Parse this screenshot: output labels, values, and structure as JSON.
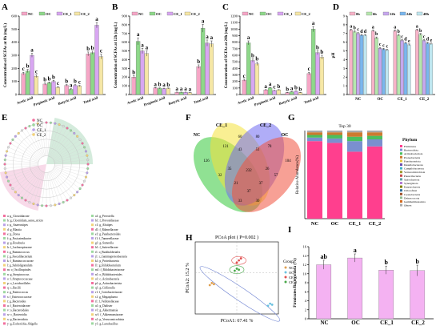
{
  "panels": {
    "A": {
      "letter": "A",
      "ylabel": "Concentration of SCFAs at 0h (mg/L)"
    },
    "B": {
      "letter": "B",
      "ylabel": "Concentration of SCFAs at 12h (mg/L)"
    },
    "C": {
      "letter": "C",
      "ylabel": "Concentration of SCFAs at 24h (mg/L)"
    },
    "D": {
      "letter": "D",
      "ylabel": "pH"
    },
    "E": {
      "letter": "E"
    },
    "F": {
      "letter": "F"
    },
    "G": {
      "letter": "G",
      "title": "Top 30",
      "ylabel": "Relative Abundance(%)",
      "legend_title": "Phylum"
    },
    "H": {
      "letter": "H",
      "title": "PCoA plot ( P=0.002 )",
      "xlabel": "PCoA1: 67.41 %",
      "ylabel": "PCoA2: 15.2 %",
      "legend_title": "Group"
    },
    "I": {
      "letter": "I",
      "ylabel": "Firmicutes/Bacteroidota (%)"
    }
  },
  "legend_groups": [
    "NC",
    "OC",
    "CE_1",
    "CE_2"
  ],
  "legend_times": [
    "0h",
    "6h",
    "12h",
    "24h",
    "48h"
  ],
  "colors": {
    "NC": "#f6a6c6",
    "OC": "#8ed88a",
    "CE_1": "#d8a6f2",
    "CE_2": "#f6e7a6"
  },
  "venn": {
    "labels": [
      "NC",
      "CE_1",
      "CE_2",
      "OC"
    ],
    "numbers": [
      "126",
      "60",
      "80",
      "104",
      "131",
      "43",
      "51",
      "78",
      "232",
      "35",
      "26",
      "21",
      "37",
      "37",
      "32",
      "57",
      "33",
      "30"
    ]
  },
  "lefse_legend": [
    "NC",
    "OC",
    "CE_1",
    "CE_2"
  ],
  "lefse_left": [
    "a: g_Clostridiaceae",
    "b: g_Clostridium_sensu_stricto",
    "c: g_Anaerostipes",
    "d: g_Blautia",
    "e: g_Dorea",
    "f: g_Fusicatenibacter",
    "g: g_Roseburia",
    "h: f_Lachnospiraceae",
    "i: g_Ruminococcus",
    "j: g_Faecalibacterium",
    "k: f_Ruminococcaceae",
    "l: g_Subdoligranulum",
    "m: o_Oscillospirales",
    "n: g_Streptococcus",
    "o: f_Streptococcaceae",
    "p: o_Lactobacillales",
    "q: c_Bacilli",
    "r: g_Enterococcus",
    "s: f_Enterococcaceae",
    "t: g_Bacteroides",
    "u: f_Bacteroidaceae",
    "v: o_Bacteroidales",
    "w: c_Bacteroidia",
    "x: p_Bacteroidota",
    "y: g_Escherichia_Shigella"
  ],
  "lefse_right": [
    "a1: g_Prevotella",
    "b1: f_Prevotellaceae",
    "c1: g_Alistipes",
    "d1: f_Rikenellaceae",
    "e1: g_Parabacteroides",
    "f1: f_Tannerellaceae",
    "g1: g_Sutterella",
    "h1: f_Sutterellaceae",
    "i1: o_Burkholderiales",
    "j1: c_Gammaproteobacteria",
    "k1: p_Proteobacteria",
    "l1: g_Bifidobacterium",
    "m1: f_Bifidobacteriaceae",
    "n1: o_Bifidobacteriales",
    "o1: c_Actinobacteria",
    "p1: p_Actinobacteriota",
    "q1: g_Collinsella",
    "r1: f_Coriobacteriaceae",
    "s1: g_Megasphaera",
    "t1: f_Veillonellaceae",
    "u1: g_Dialister",
    "v1: g_Akkermansia",
    "w1: f_Akkermansiaceae",
    "x1: p_Verrucomicrobiota",
    "y1: g_Lactobacillus"
  ],
  "phylum_legend": [
    "Firmicutes",
    "Bacteroidota",
    "Actinobacteriota",
    "Proteobacteria",
    "Fusobacteriota",
    "Desulfobacterota",
    "Campilobacterota",
    "Verrucomicrobiota",
    "Patescibacteria",
    "Spirochaetota",
    "Synergistota",
    "Euryarchaeota",
    "Chloroflexi",
    "Cyanobacteria",
    "Deinococcota",
    "Gemmatimonadota",
    "Others"
  ],
  "phylum_colors": [
    "#ff3f8e",
    "#7a8fcf",
    "#4bbf5e",
    "#cd7a2f",
    "#e3c63c",
    "#6d4fb0",
    "#3fb3c8",
    "#9b9b2f",
    "#c84a4a",
    "#5f9ea0",
    "#b57bd6",
    "#808000",
    "#2f6f9f",
    "#a0522d",
    "#8fbc8f",
    "#d2691e",
    "#a9a9a9"
  ],
  "pcoa_groups": [
    "NC",
    "OC",
    "CE_1",
    "CE_2"
  ],
  "pcoa_colors": [
    "#e0a050",
    "#6cc2e0",
    "#e05050",
    "#4aa84a"
  ],
  "chart_data": [
    {
      "type": "bar",
      "panel": "A",
      "categories": [
        "Acetic acid",
        "Propionic acid",
        "Butyric acid",
        "Total acid"
      ],
      "ylabel": "Concentration of SCFAs at 0h (mg/L)",
      "ylim": [
        0,
        600
      ],
      "yticks": [
        "0",
        "100",
        "200",
        "300",
        "400",
        "500",
        "600"
      ],
      "series": [
        {
          "name": "NC",
          "values": [
            160,
            80,
            70,
            310
          ],
          "err": [
            10,
            8,
            6,
            15
          ],
          "letters": [
            "c",
            "b",
            "b",
            "b"
          ]
        },
        {
          "name": "OC",
          "values": [
            180,
            90,
            40,
            320
          ],
          "err": [
            12,
            6,
            5,
            12
          ],
          "letters": [
            "b",
            "b",
            "a",
            "b"
          ]
        },
        {
          "name": "CE_1",
          "values": [
            300,
            100,
            70,
            530
          ],
          "err": [
            15,
            8,
            6,
            20
          ],
          "letters": [
            "a",
            "b",
            "b",
            "a"
          ]
        },
        {
          "name": "CE_2",
          "values": [
            140,
            55,
            65,
            290
          ],
          "err": [
            10,
            6,
            5,
            18
          ],
          "letters": [
            "c",
            "c",
            "c",
            "c"
          ]
        }
      ]
    },
    {
      "type": "bar",
      "panel": "B",
      "categories": [
        "Acetic acid",
        "Propionic acid",
        "Butyric acid",
        "Total acid"
      ],
      "ylabel": "Concentration of SCFAs at 12h (mg/L)",
      "ylim": [
        0,
        900
      ],
      "yticks": [
        "0",
        "100",
        "200",
        "300",
        "400",
        "500",
        "600",
        "700",
        "800",
        "900"
      ],
      "series": [
        {
          "name": "NC",
          "values": [
            200,
            75,
            25,
            320
          ],
          "err": [
            15,
            5,
            3,
            20
          ],
          "letters": [
            "b",
            "a",
            "a",
            "b"
          ]
        },
        {
          "name": "OC",
          "values": [
            610,
            70,
            25,
            760
          ],
          "err": [
            40,
            6,
            3,
            45
          ],
          "letters": [
            "a",
            "b",
            "a",
            "a"
          ]
        },
        {
          "name": "CE_1",
          "values": [
            500,
            68,
            25,
            590
          ],
          "err": [
            30,
            5,
            3,
            35
          ],
          "letters": [
            "a",
            "a",
            "a",
            "a"
          ]
        },
        {
          "name": "CE_2",
          "values": [
            470,
            70,
            20,
            580
          ],
          "err": [
            30,
            5,
            3,
            35
          ],
          "letters": [
            "a",
            "b",
            "a",
            "a"
          ]
        }
      ]
    },
    {
      "type": "bar",
      "panel": "C",
      "categories": [
        "Acetic acid",
        "Propionic acid",
        "Butyric acid",
        "Total acid"
      ],
      "ylabel": "Concentration of SCFAs at 24h (mg/L)",
      "ylim": [
        0,
        1200
      ],
      "yticks": [
        "0",
        "100",
        "200",
        "300",
        "400",
        "500",
        "600",
        "700",
        "800",
        "900",
        "1000",
        "1100",
        "1200"
      ],
      "series": [
        {
          "name": "NC",
          "values": [
            220,
            70,
            30,
            320
          ],
          "err": [
            15,
            5,
            3,
            20
          ],
          "letters": [
            "c",
            "a",
            "b",
            "c"
          ]
        },
        {
          "name": "OC",
          "values": [
            790,
            100,
            40,
            1000
          ],
          "err": [
            30,
            8,
            4,
            40
          ],
          "letters": [
            "a",
            "a",
            "a",
            "a"
          ]
        },
        {
          "name": "CE_1",
          "values": [
            520,
            60,
            50,
            640
          ],
          "err": [
            25,
            5,
            4,
            30
          ],
          "letters": [
            "b",
            "c",
            "b",
            "b"
          ]
        },
        {
          "name": "CE_2",
          "values": [
            470,
            70,
            30,
            570
          ],
          "err": [
            25,
            5,
            3,
            30
          ],
          "letters": [
            "b",
            "b",
            "b",
            "b"
          ]
        }
      ]
    },
    {
      "type": "bar",
      "panel": "D",
      "categories": [
        "NC",
        "OC",
        "CE_1",
        "CE_2"
      ],
      "ylabel": "pH",
      "ylim": [
        0,
        9
      ],
      "yticks": [
        "0",
        "1",
        "2",
        "3",
        "4",
        "5",
        "6",
        "7",
        "8",
        "9"
      ],
      "series": [
        {
          "name": "0h",
          "values": [
            7.4,
            7.3,
            7.3,
            7.4
          ],
          "err": [
            0.1,
            0.1,
            0.1,
            0.1
          ],
          "letters": [
            "a",
            "a",
            "a",
            "a"
          ]
        },
        {
          "name": "6h",
          "values": [
            7.2,
            6.5,
            6.8,
            6.9
          ],
          "err": [
            0.1,
            0.1,
            0.1,
            0.1
          ],
          "letters": [
            "b",
            "b",
            "b",
            "b"
          ]
        },
        {
          "name": "12h",
          "values": [
            7.0,
            5.3,
            6.2,
            6.2
          ],
          "err": [
            0.1,
            0.1,
            0.1,
            0.1
          ],
          "letters": [
            "c",
            "c",
            "c",
            "c"
          ]
        },
        {
          "name": "24h",
          "values": [
            6.8,
            5.2,
            5.9,
            5.9
          ],
          "err": [
            0.1,
            0.1,
            0.1,
            0.1
          ],
          "letters": [
            "d",
            "c",
            "d",
            "d"
          ]
        },
        {
          "name": "48h",
          "values": [
            6.8,
            5.1,
            5.7,
            5.8
          ],
          "err": [
            0.1,
            0.1,
            0.1,
            0.1
          ],
          "letters": [
            "d",
            "c",
            "e",
            "e"
          ]
        }
      ]
    },
    {
      "type": "bar",
      "panel": "G",
      "stacked": true,
      "categories": [
        "NC",
        "OC",
        "CE_1",
        "CE_2"
      ],
      "ylabel": "Relative Abundance(%)",
      "title": "Top 30",
      "ylim": [
        0,
        1
      ],
      "series": [
        {
          "name": "Firmicutes",
          "values": [
            0.88,
            0.86,
            0.76,
            0.82
          ]
        },
        {
          "name": "Bacteroidota",
          "values": [
            0.04,
            0.05,
            0.12,
            0.08
          ]
        },
        {
          "name": "Actinobacteriota",
          "values": [
            0.03,
            0.04,
            0.05,
            0.04
          ]
        },
        {
          "name": "Proteobacteria",
          "values": [
            0.03,
            0.03,
            0.05,
            0.04
          ]
        },
        {
          "name": "Others",
          "values": [
            0.02,
            0.02,
            0.02,
            0.02
          ]
        }
      ]
    },
    {
      "type": "scatter",
      "panel": "H",
      "title": "PCoA plot ( P=0.002 )",
      "xlabel": "PCoA1: 67.41 %",
      "ylabel": "PCoA2: 15.2 %",
      "xlim": [
        -0.2,
        0.2
      ],
      "ylim": [
        -0.2,
        0.15
      ],
      "series": [
        {
          "name": "NC",
          "x": [
            -0.12,
            -0.13,
            -0.11
          ],
          "y": [
            -0.05,
            -0.06,
            -0.055
          ]
        },
        {
          "name": "OC",
          "x": [
            0.16,
            0.15,
            0.17
          ],
          "y": [
            -0.15,
            -0.16,
            -0.155
          ]
        },
        {
          "name": "CE_1",
          "x": [
            0.01,
            0.02,
            0.0
          ],
          "y": [
            0.06,
            0.07,
            0.05
          ]
        },
        {
          "name": "CE_2",
          "x": [
            0.0,
            0.01,
            -0.01
          ],
          "y": [
            0.02,
            0.015,
            0.01
          ]
        }
      ]
    },
    {
      "type": "bar",
      "panel": "I",
      "categories": [
        "NC",
        "OC",
        "CE_1",
        "CE_2"
      ],
      "ylabel": "Firmicutes/Bacteroidota (%)",
      "ylim": [
        0,
        16
      ],
      "yticks": [
        "0",
        "2",
        "4",
        "6",
        "8",
        "10",
        "12",
        "14",
        "16"
      ],
      "series": [
        {
          "name": "F/B",
          "values": [
            12.0,
            13.5,
            10.8,
            10.7
          ],
          "err": [
            1.0,
            0.9,
            0.9,
            1.2
          ],
          "letters": [
            "ab",
            "a",
            "b",
            "b"
          ]
        }
      ]
    }
  ]
}
